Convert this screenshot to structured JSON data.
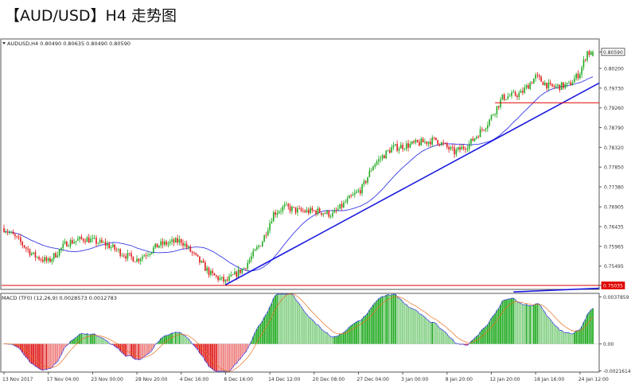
{
  "page": {
    "title": "【AUD/USD】H4 走势图"
  },
  "header": {
    "symbol_line": "AUDUSD,H4  0.80490 0.80635 0.80490 0.80590",
    "macd_line": "MACD (TF0) (12,26,9) 0.0028573 0.0012783"
  },
  "colors": {
    "bull": "#20aa20",
    "bear": "#e01818",
    "trend": "#1c1ce0",
    "support": "#e00000",
    "ma": "#3a3ae8",
    "macd_signal": "#e87020",
    "price_tag": "#e00000",
    "grid": "#cccccc"
  },
  "chart_data": [
    {
      "type": "candlestick",
      "symbol": "AUDUSD",
      "timeframe": "H4",
      "ylim": [
        0.7496,
        0.8088
      ],
      "ohlc_header": {
        "open": 0.8049,
        "high": 0.80635,
        "low": 0.8049,
        "close": 0.8059
      },
      "y_ticks": [
        "0.80590",
        "0.80200",
        "0.79730",
        "0.79260",
        "0.78790",
        "0.78320",
        "0.77850",
        "0.77380",
        "0.76905",
        "0.76435",
        "0.75965",
        "0.75495",
        "0.75035"
      ],
      "y_tick_values": [
        0.8059,
        0.802,
        0.7973,
        0.7926,
        0.7879,
        0.7832,
        0.7785,
        0.7738,
        0.76905,
        0.76435,
        0.75965,
        0.75495,
        0.75035
      ],
      "current_price_label": "0.80590",
      "support_label": "0.75035",
      "x_ticks": [
        "13 Nov 2017",
        "17 Nov 04:00",
        "23 Nov 00:00",
        "28 Nov 20:00",
        "4 Dec 16:00",
        "8 Dec 16:00",
        "14 Dec 12:00",
        "20 Dec 08:00",
        "27 Dec 04:00",
        "3 Jan 00:00",
        "8 Jan 20:00",
        "12 Jan 20:00",
        "18 Jan 16:00",
        "24 Jan 12:00"
      ],
      "x_tick_bars": [
        0,
        24,
        48,
        72,
        96,
        120,
        144,
        168,
        192,
        216,
        240,
        264,
        288,
        312
      ],
      "bar_count": 320,
      "price_path_anchors": [
        [
          0,
          0.764
        ],
        [
          8,
          0.761
        ],
        [
          16,
          0.7575
        ],
        [
          24,
          0.756
        ],
        [
          34,
          0.7605
        ],
        [
          44,
          0.7615
        ],
        [
          56,
          0.76
        ],
        [
          66,
          0.7575
        ],
        [
          72,
          0.7565
        ],
        [
          84,
          0.76
        ],
        [
          96,
          0.761
        ],
        [
          104,
          0.757
        ],
        [
          112,
          0.753
        ],
        [
          120,
          0.7512
        ],
        [
          130,
          0.7545
        ],
        [
          140,
          0.761
        ],
        [
          146,
          0.7675
        ],
        [
          152,
          0.769
        ],
        [
          160,
          0.768
        ],
        [
          170,
          0.768
        ],
        [
          178,
          0.7672
        ],
        [
          186,
          0.7705
        ],
        [
          194,
          0.7735
        ],
        [
          200,
          0.779
        ],
        [
          210,
          0.783
        ],
        [
          222,
          0.784
        ],
        [
          234,
          0.785
        ],
        [
          244,
          0.782
        ],
        [
          252,
          0.784
        ],
        [
          262,
          0.789
        ],
        [
          270,
          0.795
        ],
        [
          280,
          0.796
        ],
        [
          288,
          0.8
        ],
        [
          296,
          0.7975
        ],
        [
          306,
          0.798
        ],
        [
          312,
          0.801
        ],
        [
          316,
          0.806
        ],
        [
          319,
          0.805
        ]
      ],
      "trend_lines": [
        {
          "name": "ascending trendline",
          "from": [
            120,
            0.7505
          ],
          "to": [
            373,
            0.8105
          ]
        },
        {
          "name": "lower trendline",
          "from": [
            276,
            0.7488
          ],
          "to": [
            391,
            0.751
          ]
        }
      ],
      "horizontal_lines": [
        {
          "name": "support",
          "value": 0.75035
        },
        {
          "name": "resistance",
          "value": 0.7938,
          "from_bar": 266
        }
      ],
      "moving_average": {
        "name": "MA",
        "period": 30
      }
    },
    {
      "type": "histogram",
      "name": "MACD (TF0) (12,26,9)",
      "params": [
        12,
        26,
        9
      ],
      "values_header": [
        0.0028573,
        0.0012783
      ],
      "ylim": [
        -0.0022,
        0.004
      ],
      "y_ticks": [
        "0.0037859",
        "0.00",
        "-0.0021614"
      ],
      "y_tick_values": [
        0.0037859,
        0.0,
        -0.0021614
      ]
    }
  ]
}
